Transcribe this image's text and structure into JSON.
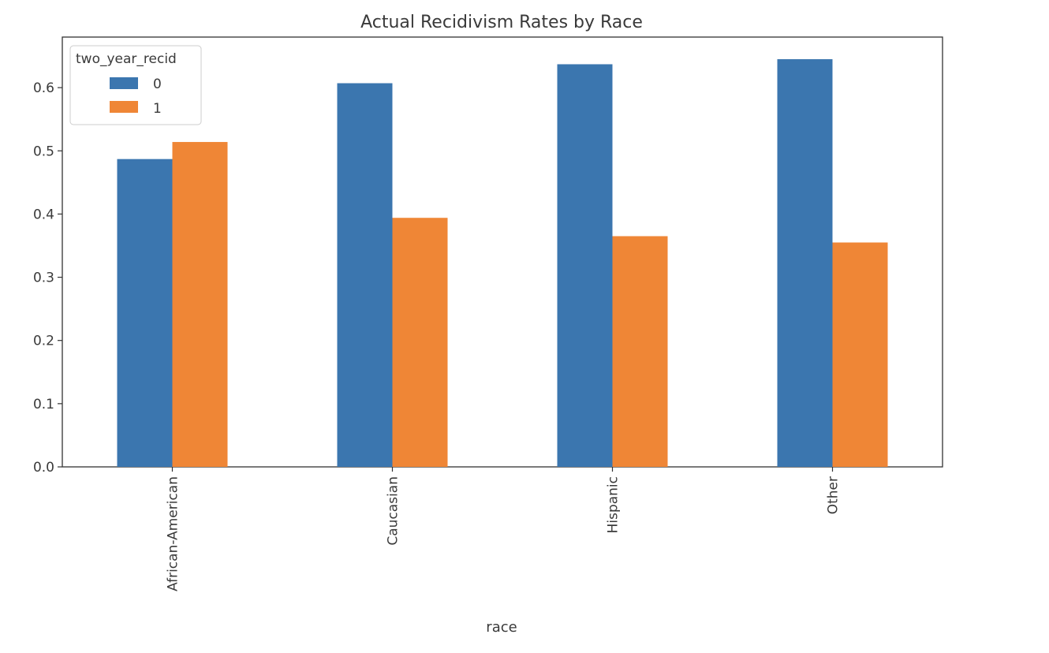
{
  "chart_data": {
    "type": "bar",
    "title": "Actual Recidivism Rates by Race",
    "xlabel": "race",
    "ylabel": "",
    "categories": [
      "African-American",
      "Caucasian",
      "Hispanic",
      "Other"
    ],
    "series": [
      {
        "name": "0",
        "values": [
          0.487,
          0.607,
          0.637,
          0.645
        ],
        "color": "#3b76af"
      },
      {
        "name": "1",
        "values": [
          0.514,
          0.394,
          0.365,
          0.355
        ],
        "color": "#ef8636"
      }
    ],
    "legend_title": "two_year_recid",
    "legend_position": "top-left",
    "ylim": [
      0,
      0.68
    ],
    "yticks": [
      "0.0",
      "0.1",
      "0.2",
      "0.3",
      "0.4",
      "0.5",
      "0.6"
    ],
    "ytick_values": [
      0.0,
      0.1,
      0.2,
      0.3,
      0.4,
      0.5,
      0.6
    ],
    "grid": false
  }
}
